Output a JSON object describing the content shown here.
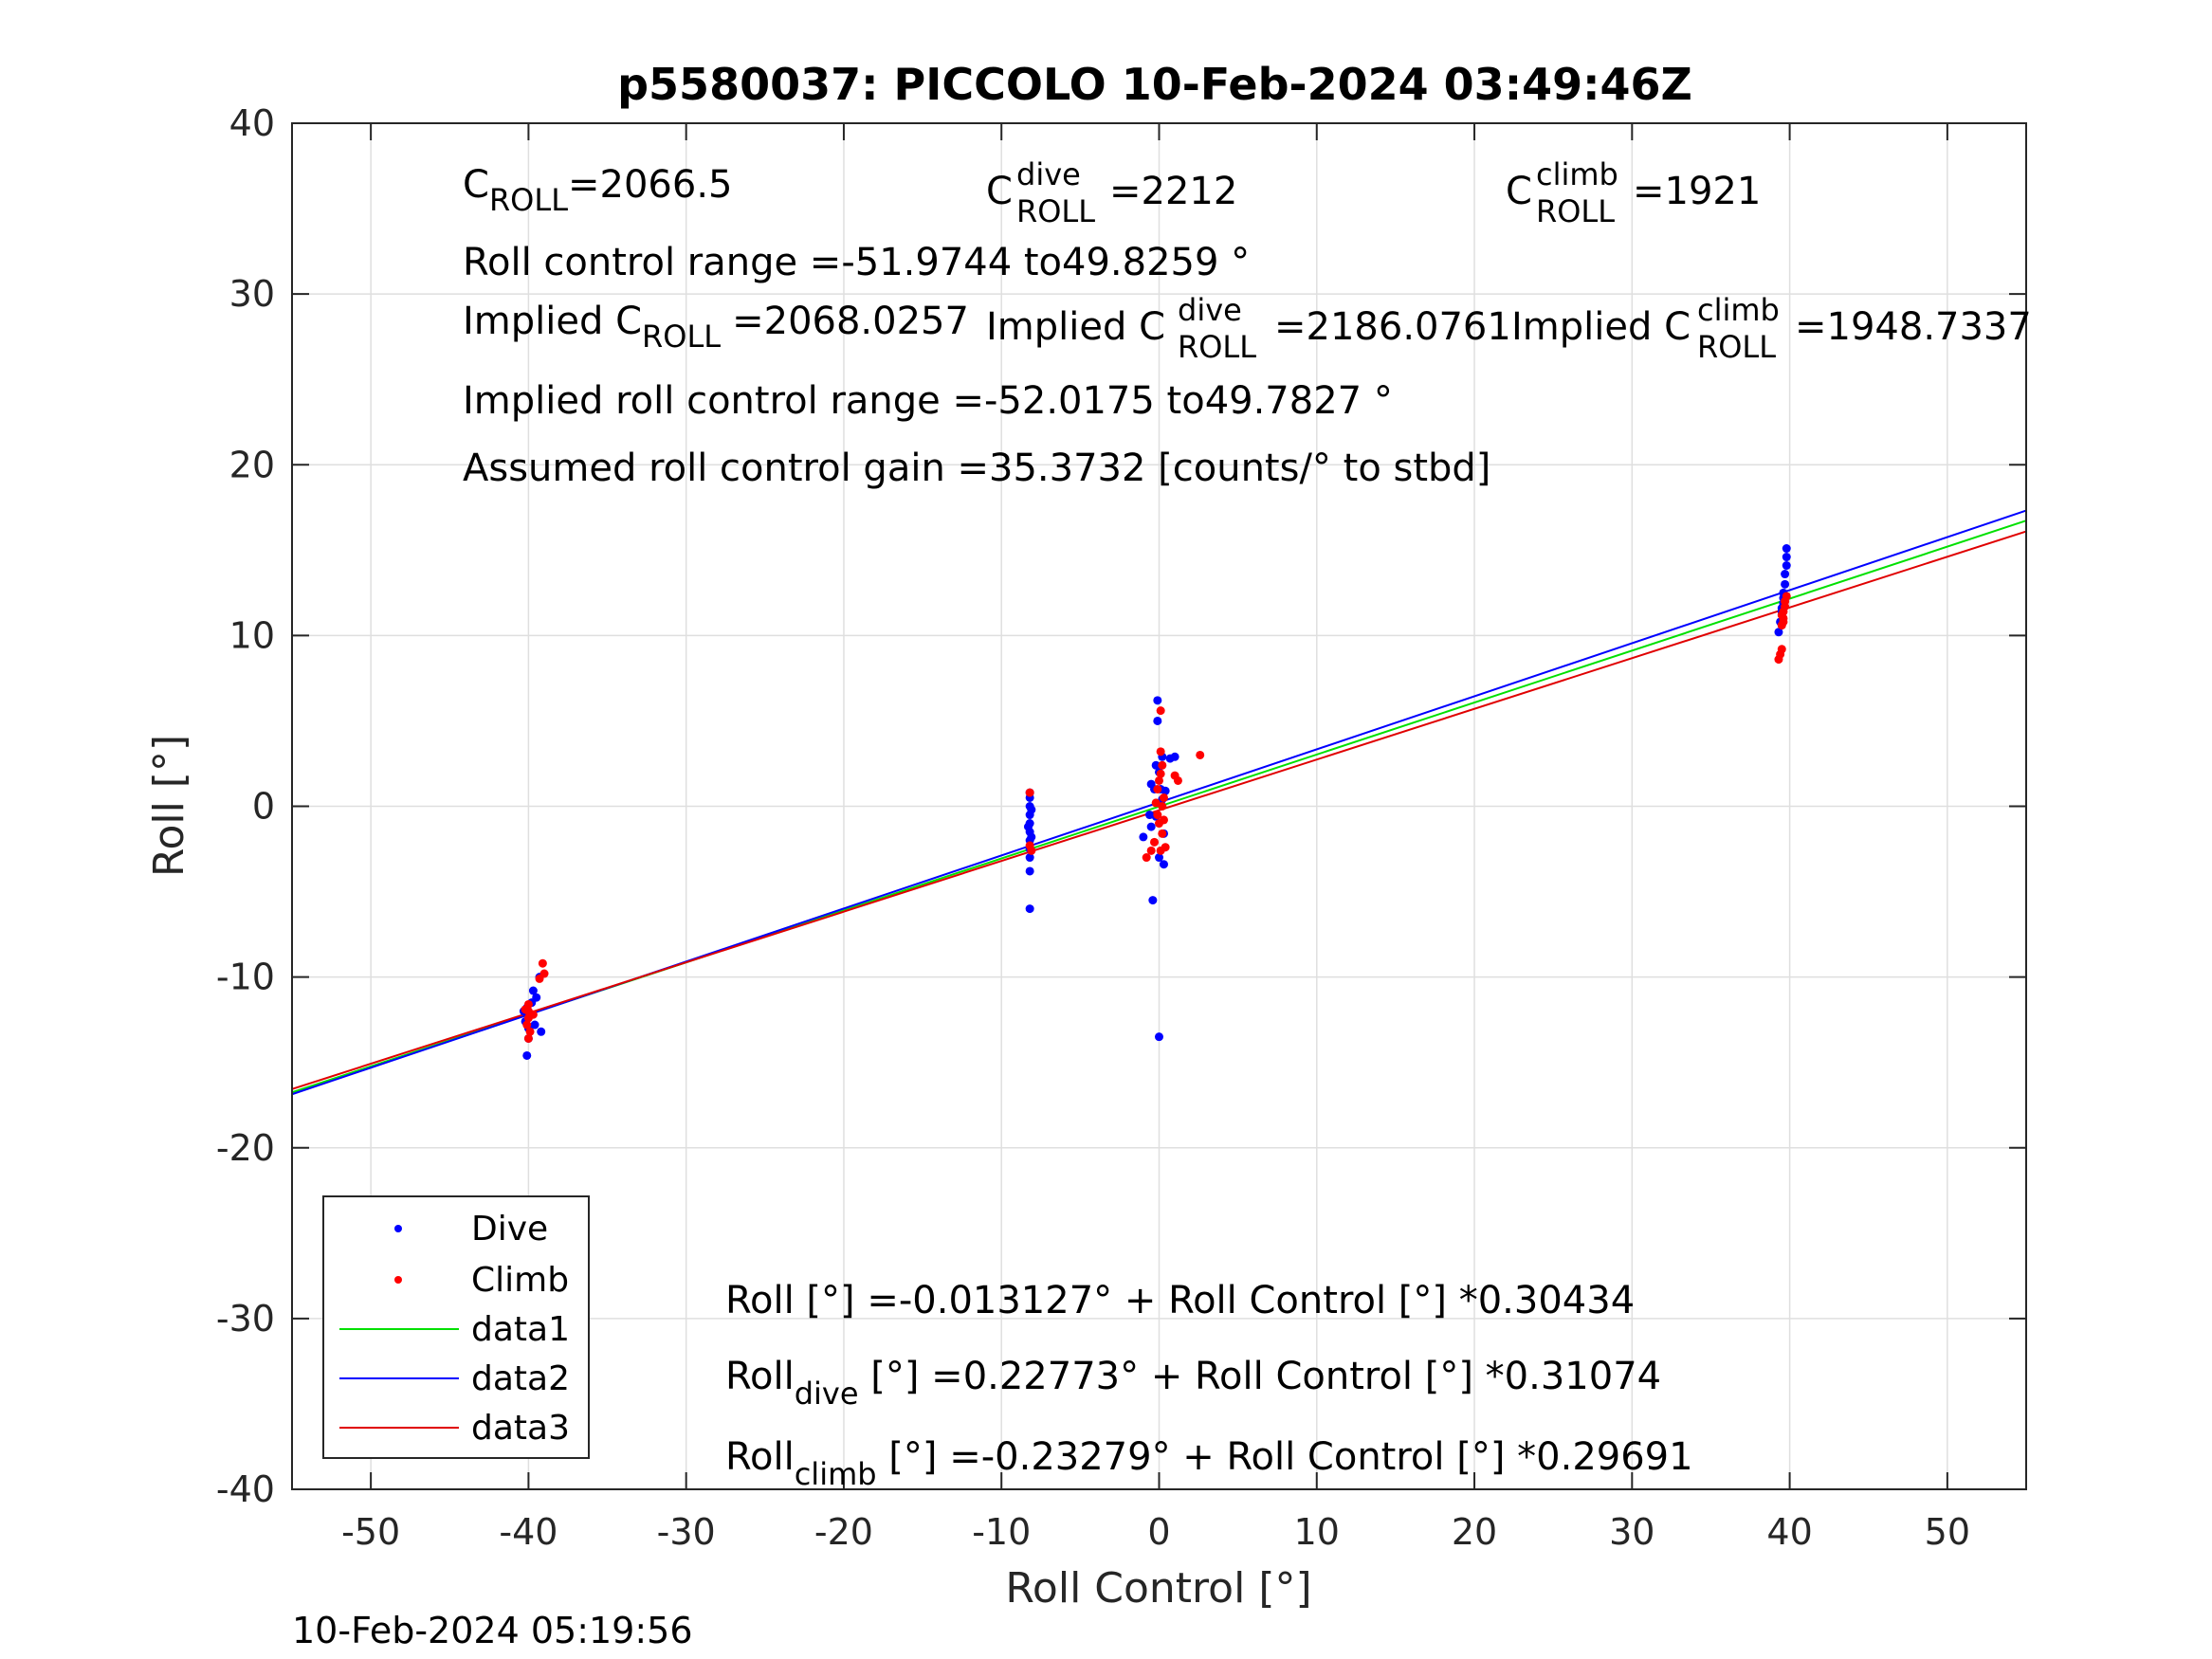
{
  "chart_data": {
    "type": "scatter",
    "title": "p5580037: PICCOLO 10-Feb-2024 03:49:46Z",
    "xlabel": "Roll Control [°]",
    "ylabel": "Roll [°]",
    "xlim": [
      -55,
      55
    ],
    "ylim": [
      -40,
      40
    ],
    "xticks": [
      -50,
      -40,
      -30,
      -20,
      -10,
      0,
      10,
      20,
      30,
      40,
      50
    ],
    "yticks": [
      -40,
      -30,
      -20,
      -10,
      0,
      10,
      20,
      30,
      40
    ],
    "grid": true,
    "legend_position": "bottom-left",
    "colors": {
      "dive": "#0000ff",
      "climb": "#ff0000",
      "data1": "#00e000",
      "data2": "#0000ff",
      "data3": "#e00000",
      "grid": "#dfdfdf",
      "axis": "#262626"
    },
    "series": [
      {
        "name": "Dive",
        "kind": "points",
        "color": "#0000ff",
        "points": [
          [
            -40.1,
            -14.6
          ],
          [
            -40.0,
            -13.6
          ],
          [
            -40.0,
            -13.0
          ],
          [
            -40.2,
            -12.6
          ],
          [
            -39.9,
            -12.2
          ],
          [
            -40.1,
            -11.8
          ],
          [
            -39.6,
            -12.8
          ],
          [
            -39.5,
            -11.2
          ],
          [
            -39.7,
            -10.8
          ],
          [
            -39.3,
            -10.0
          ],
          [
            -39.2,
            -13.2
          ],
          [
            -40.3,
            -12.0
          ],
          [
            -39.8,
            -11.5
          ],
          [
            -8.2,
            -6.0
          ],
          [
            -8.2,
            -3.8
          ],
          [
            -8.2,
            -3.0
          ],
          [
            -8.2,
            -2.5
          ],
          [
            -8.2,
            -2.0
          ],
          [
            -8.2,
            -1.5
          ],
          [
            -8.2,
            -1.0
          ],
          [
            -8.2,
            -0.5
          ],
          [
            -8.2,
            0.0
          ],
          [
            -8.2,
            0.5
          ],
          [
            -8.2,
            0.8
          ],
          [
            -8.1,
            -1.8
          ],
          [
            -8.1,
            -0.2
          ],
          [
            -8.3,
            -1.2
          ],
          [
            -0.1,
            6.2
          ],
          [
            -0.1,
            5.0
          ],
          [
            0.2,
            2.9
          ],
          [
            0.7,
            2.8
          ],
          [
            1.0,
            2.9
          ],
          [
            -0.5,
            1.3
          ],
          [
            -0.3,
            1.0
          ],
          [
            -0.6,
            -0.5
          ],
          [
            -1.0,
            -1.8
          ],
          [
            -0.5,
            -1.2
          ],
          [
            0.3,
            -3.4
          ],
          [
            0.0,
            -3.0
          ],
          [
            -0.4,
            -5.5
          ],
          [
            0.0,
            -13.5
          ],
          [
            0.0,
            2.0
          ],
          [
            0.1,
            1.0
          ],
          [
            0.2,
            0.4
          ],
          [
            -0.2,
            -0.6
          ],
          [
            0.3,
            -1.6
          ],
          [
            0.4,
            0.9
          ],
          [
            -0.2,
            2.4
          ],
          [
            39.3,
            10.2
          ],
          [
            39.4,
            10.8
          ],
          [
            39.5,
            11.4
          ],
          [
            39.6,
            11.9
          ],
          [
            39.6,
            12.5
          ],
          [
            39.7,
            13.0
          ],
          [
            39.7,
            13.6
          ],
          [
            39.8,
            14.1
          ],
          [
            39.8,
            14.6
          ],
          [
            39.8,
            15.1
          ],
          [
            39.6,
            12.2
          ],
          [
            39.5,
            11.6
          ]
        ]
      },
      {
        "name": "Climb",
        "kind": "points",
        "color": "#ff0000",
        "points": [
          [
            -39.1,
            -9.2
          ],
          [
            -39.0,
            -9.8
          ],
          [
            -39.3,
            -10.1
          ],
          [
            -40.0,
            -11.6
          ],
          [
            -40.0,
            -12.0
          ],
          [
            -40.0,
            -12.4
          ],
          [
            -40.1,
            -12.8
          ],
          [
            -39.9,
            -13.2
          ],
          [
            -40.0,
            -13.6
          ],
          [
            -39.7,
            -12.2
          ],
          [
            -40.2,
            -11.9
          ],
          [
            -8.2,
            0.8
          ],
          [
            -8.2,
            -2.3
          ],
          [
            -8.1,
            -2.6
          ],
          [
            0.1,
            5.6
          ],
          [
            0.1,
            3.2
          ],
          [
            0.2,
            2.4
          ],
          [
            0.1,
            1.9
          ],
          [
            0.0,
            1.5
          ],
          [
            -0.1,
            1.0
          ],
          [
            0.3,
            0.5
          ],
          [
            0.2,
            0.0
          ],
          [
            -0.1,
            -0.5
          ],
          [
            0.0,
            -1.0
          ],
          [
            0.2,
            -1.6
          ],
          [
            -0.3,
            -2.1
          ],
          [
            0.1,
            -2.6
          ],
          [
            -0.8,
            -3.0
          ],
          [
            -0.5,
            -2.6
          ],
          [
            1.0,
            1.8
          ],
          [
            1.2,
            1.5
          ],
          [
            2.6,
            3.0
          ],
          [
            0.4,
            -2.4
          ],
          [
            -0.2,
            0.2
          ],
          [
            0.3,
            -0.8
          ],
          [
            39.3,
            8.6
          ],
          [
            39.4,
            8.9
          ],
          [
            39.5,
            9.2
          ],
          [
            39.5,
            10.6
          ],
          [
            39.6,
            11.0
          ],
          [
            39.6,
            11.4
          ],
          [
            39.7,
            11.7
          ],
          [
            39.7,
            12.0
          ],
          [
            39.8,
            12.3
          ],
          [
            39.5,
            11.2
          ],
          [
            39.6,
            10.8
          ]
        ]
      },
      {
        "name": "data1",
        "kind": "line",
        "color": "#00e000",
        "intercept": -0.013127,
        "slope": 0.30434
      },
      {
        "name": "data2",
        "kind": "line",
        "color": "#0000ff",
        "intercept": 0.22773,
        "slope": 0.31074
      },
      {
        "name": "data3",
        "kind": "line",
        "color": "#e00000",
        "intercept": -0.23279,
        "slope": 0.29691
      }
    ],
    "annotations": {
      "c_roll": {
        "main": "C",
        "sub": "ROLL",
        "value": "=2066.5"
      },
      "c_roll_dive": {
        "main": "C",
        "sup": "dive",
        "sub": "ROLL",
        "value": "=2212"
      },
      "c_roll_climb": {
        "main": "C",
        "sup": "climb",
        "sub": "ROLL",
        "value": "=1921"
      },
      "roll_control_range": "Roll control range =-51.9744 to49.8259 °",
      "implied_c_roll": {
        "main": "Implied C",
        "sub": "ROLL",
        "value": "=2068.0257"
      },
      "implied_c_roll_dive": {
        "main": "Implied C",
        "sup": "dive",
        "sub": "ROLL",
        "value": "=2186.0761"
      },
      "implied_c_roll_climb": {
        "main": "Implied C",
        "sup": "climb",
        "sub": "ROLL",
        "value": "=1948.7337"
      },
      "implied_roll_control_range": "Implied roll control range =-52.0175 to49.7827 °",
      "assumed_gain": "Assumed roll control gain =35.3732 [counts/° to stbd]",
      "fit_all": "Roll [°] =-0.013127° + Roll Control [°] *0.30434",
      "fit_dive": {
        "main": "Roll",
        "sub": "dive",
        "rest": " [°] =0.22773° + Roll Control [°] *0.31074"
      },
      "fit_climb": {
        "main": "Roll",
        "sub": "climb",
        "rest": " [°] =-0.23279° + Roll Control [°] *0.29691"
      }
    }
  },
  "legend": {
    "dive": "Dive",
    "climb": "Climb",
    "data1": "data1",
    "data2": "data2",
    "data3": "data3"
  },
  "footer": {
    "timestamp": "10-Feb-2024 05:19:56"
  }
}
